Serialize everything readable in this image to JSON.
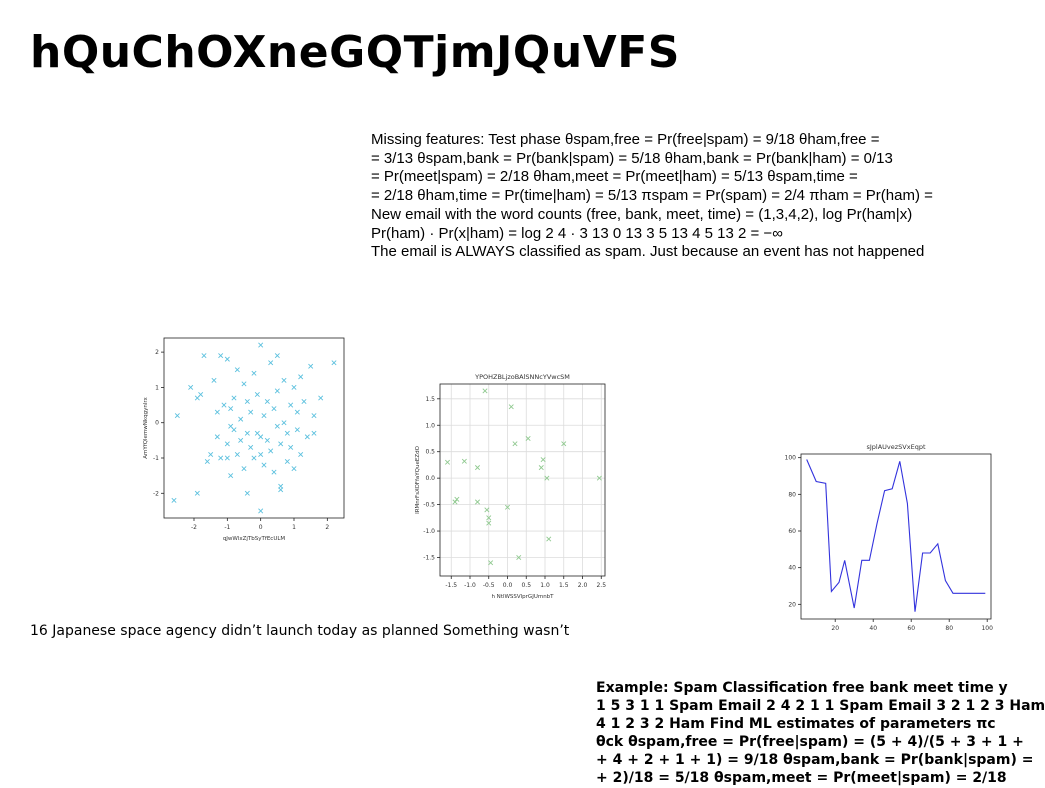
{
  "page": {
    "title": "hQuChOXneGQTjmJQuVFS",
    "paragraph1_lines": [
      "Missing features: Test phase θspam,free = Pr(free|spam) = 9/18 θham,free =",
      "= 3/13 θspam,bank = Pr(bank|spam) = 5/18 θham,bank = Pr(bank|ham) = 0/13",
      "= Pr(meet|spam) = 2/18 θham,meet = Pr(meet|ham) = 5/13 θspam,time =",
      "= 2/18 θham,time = Pr(time|ham) = 5/13 πspam = Pr(spam) = 2/4 πham = Pr(ham) =",
      "New email with the word counts (free, bank, meet, time) = (1,3,4,2), log Pr(ham|x) ",
      "Pr(ham) · Pr(x|ham) = log  2 4 ·  3 13   0 13 3  5 13 4  5 13 2 = −∞",
      "The email is ALWAYS classified as spam. Just because an event has not happened"
    ],
    "caption": "16 Japanese space agency didn’t launch today as planned Something wasn’t",
    "paragraph2_lines": [
      "Example: Spam Classification free bank meet time y",
      "1 5 3 1 1 Spam Email 2 4 2 1 1 Spam Email 3 2 1 2 3 Ham",
      "4 1 2 3 2 Ham Find ML estimates of parameters πc",
      "θck θspam,free = Pr(free|spam) = (5 + 4)/(5 + 3 + 1 +",
      "+ 4 + 2 + 1 + 1) = 9/18 θspam,bank = Pr(bank|spam) =",
      "+ 2)/18 = 5/18 θspam,meet = Pr(meet|spam) = 2/18"
    ]
  },
  "chart_data": [
    {
      "type": "scatter",
      "title": "",
      "xlabel": "qJwWlxZjTbSyTfEcULM",
      "ylabel": "AmYfQlemwNkqgynlrx",
      "xlim": [
        -2.9,
        2.5
      ],
      "ylim": [
        -2.7,
        2.4
      ],
      "xticks": [
        -2,
        -1,
        0,
        1,
        2
      ],
      "yticks": [
        -2,
        -1,
        0,
        1,
        2
      ],
      "marker": "x",
      "color": "#5bc0de",
      "grid": false,
      "points": [
        [
          -2.6,
          -2.2
        ],
        [
          -2.5,
          0.2
        ],
        [
          -2.1,
          1.0
        ],
        [
          -1.9,
          -2.0
        ],
        [
          -1.9,
          0.7
        ],
        [
          -1.8,
          0.8
        ],
        [
          -1.7,
          1.9
        ],
        [
          -1.6,
          -1.1
        ],
        [
          -1.5,
          -0.9
        ],
        [
          -1.4,
          1.2
        ],
        [
          -1.3,
          -0.4
        ],
        [
          -1.3,
          0.3
        ],
        [
          -1.2,
          -1.0
        ],
        [
          -1.1,
          0.5
        ],
        [
          -1.0,
          1.8
        ],
        [
          -1.0,
          -0.6
        ],
        [
          -0.9,
          0.4
        ],
        [
          -0.9,
          -1.5
        ],
        [
          -0.8,
          0.7
        ],
        [
          -0.8,
          -0.2
        ],
        [
          -0.7,
          1.5
        ],
        [
          -0.7,
          -0.9
        ],
        [
          -0.6,
          0.1
        ],
        [
          -0.6,
          -0.5
        ],
        [
          -0.5,
          1.1
        ],
        [
          -0.5,
          -1.3
        ],
        [
          -0.4,
          0.6
        ],
        [
          -0.4,
          -0.3
        ],
        [
          -0.3,
          0.3
        ],
        [
          -0.3,
          -0.7
        ],
        [
          -0.2,
          1.4
        ],
        [
          -0.2,
          -1.0
        ],
        [
          -0.1,
          0.8
        ],
        [
          -0.1,
          -0.3
        ],
        [
          0.0,
          2.2
        ],
        [
          0.0,
          -0.4
        ],
        [
          0.0,
          -0.9
        ],
        [
          0.1,
          0.2
        ],
        [
          0.1,
          -1.2
        ],
        [
          0.2,
          0.6
        ],
        [
          0.2,
          -0.5
        ],
        [
          0.3,
          1.7
        ],
        [
          0.3,
          -0.8
        ],
        [
          0.4,
          0.4
        ],
        [
          0.4,
          -1.4
        ],
        [
          0.5,
          0.9
        ],
        [
          0.5,
          -0.1
        ],
        [
          0.6,
          -0.6
        ],
        [
          0.6,
          -1.8
        ],
        [
          0.7,
          1.2
        ],
        [
          0.7,
          0.0
        ],
        [
          0.8,
          -0.3
        ],
        [
          0.8,
          -1.1
        ],
        [
          0.9,
          0.5
        ],
        [
          0.9,
          -0.7
        ],
        [
          1.0,
          1.0
        ],
        [
          1.0,
          -1.3
        ],
        [
          1.1,
          0.3
        ],
        [
          1.1,
          -0.2
        ],
        [
          1.2,
          1.3
        ],
        [
          1.2,
          -0.9
        ],
        [
          1.3,
          0.6
        ],
        [
          1.4,
          -0.4
        ],
        [
          1.5,
          1.6
        ],
        [
          1.6,
          0.2
        ],
        [
          1.6,
          -0.3
        ],
        [
          1.8,
          0.7
        ],
        [
          2.2,
          1.7
        ],
        [
          -1.2,
          1.9
        ],
        [
          0.5,
          1.9
        ],
        [
          -0.4,
          -2.0
        ],
        [
          0.0,
          -2.5
        ],
        [
          0.6,
          -1.9
        ],
        [
          -1.0,
          -1.0
        ],
        [
          -0.9,
          -0.1
        ]
      ]
    },
    {
      "type": "scatter",
      "title": "YPOHZBLjzoBAlSNNcYVwcSM",
      "xlabel": "h NtlWSSVlprGJUmnbT",
      "ylabel": "IRMnrFsXOFfaYQueEZdO",
      "xlim": [
        -1.8,
        2.6
      ],
      "ylim": [
        -1.85,
        1.78
      ],
      "xticks": [
        -1.5,
        -1.0,
        -0.5,
        0.0,
        0.5,
        1.0,
        1.5,
        2.0,
        2.5
      ],
      "yticks": [
        -1.5,
        -1.0,
        -0.5,
        0.0,
        0.5,
        1.0,
        1.5
      ],
      "marker": "x",
      "color": "#8fc98f",
      "grid": true,
      "points": [
        [
          -1.6,
          0.3
        ],
        [
          -1.4,
          -0.45
        ],
        [
          -1.35,
          -0.4
        ],
        [
          -1.15,
          0.32
        ],
        [
          -0.8,
          0.2
        ],
        [
          -0.8,
          -0.45
        ],
        [
          -0.6,
          1.65
        ],
        [
          -0.55,
          -0.6
        ],
        [
          -0.5,
          -0.75
        ],
        [
          -0.5,
          -0.85
        ],
        [
          -0.45,
          -1.6
        ],
        [
          0.0,
          -0.55
        ],
        [
          0.1,
          1.35
        ],
        [
          0.2,
          0.65
        ],
        [
          0.3,
          -1.5
        ],
        [
          0.55,
          0.75
        ],
        [
          0.9,
          0.2
        ],
        [
          0.95,
          0.35
        ],
        [
          1.05,
          0.0
        ],
        [
          1.1,
          -1.15
        ],
        [
          1.5,
          0.65
        ],
        [
          2.45,
          0.0
        ]
      ]
    },
    {
      "type": "line",
      "title": "sJplAUvezSVxEqpt",
      "xlabel": "",
      "ylabel": "",
      "xlim": [
        2,
        102
      ],
      "ylim": [
        12,
        102
      ],
      "xticks": [
        20,
        40,
        60,
        80,
        100
      ],
      "yticks": [
        20,
        40,
        60,
        80,
        100
      ],
      "color": "#3333dd",
      "grid": false,
      "x": [
        5,
        10,
        15,
        18,
        22,
        25,
        30,
        34,
        38,
        42,
        46,
        50,
        54,
        58,
        62,
        66,
        70,
        74,
        78,
        82,
        86,
        90,
        94,
        99
      ],
      "y": [
        99,
        87,
        86,
        27,
        32,
        44,
        18,
        44,
        44,
        64,
        82,
        83,
        98,
        75,
        16,
        48,
        48,
        53,
        33,
        26,
        26,
        26,
        26,
        26
      ]
    }
  ]
}
